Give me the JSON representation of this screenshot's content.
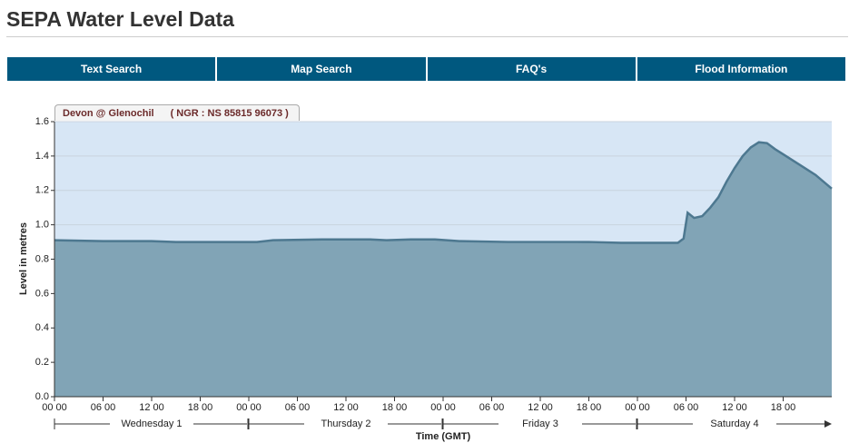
{
  "header": {
    "title": "SEPA Water Level Data"
  },
  "nav": [
    "Text Search",
    "Map Search",
    "FAQ's",
    "Flood Information"
  ],
  "tab": {
    "station": "Devon @ Glenochil",
    "ngr": "( NGR : NS 85815 96073 )"
  },
  "chart_data": {
    "type": "area",
    "x_label": "Time (GMT)",
    "y_label": "Level in metres",
    "x": [
      0,
      6,
      12,
      15,
      24,
      25,
      27,
      33,
      39,
      41,
      44,
      47,
      50,
      56,
      66,
      70,
      77,
      77.7,
      78.2,
      79,
      80,
      81,
      82,
      83,
      84,
      85,
      86,
      87,
      88,
      89,
      90,
      92,
      94,
      96
    ],
    "values": [
      0.91,
      0.905,
      0.905,
      0.9,
      0.9,
      0.9,
      0.91,
      0.915,
      0.915,
      0.91,
      0.915,
      0.915,
      0.905,
      0.9,
      0.9,
      0.895,
      0.895,
      0.92,
      1.07,
      1.04,
      1.05,
      1.1,
      1.16,
      1.25,
      1.33,
      1.4,
      1.45,
      1.48,
      1.475,
      1.44,
      1.41,
      1.35,
      1.29,
      1.21
    ],
    "color": "#81a4b6",
    "line_color": "#4d7890",
    "background": "#d7e6f5",
    "xlim": [
      0,
      96
    ],
    "ylim": [
      0,
      1.6
    ],
    "yticks": [
      {
        "value": 0,
        "label": "0.0"
      },
      0.2,
      0.4,
      0.6,
      0.8,
      {
        "value": 1,
        "label": "1.0"
      },
      1.2,
      1.4,
      1.6
    ],
    "xticks": [
      {
        "value": 0,
        "label": "00 00"
      },
      {
        "value": 6,
        "label": "06 00"
      },
      {
        "value": 12,
        "label": "12 00"
      },
      {
        "value": 18,
        "label": "18 00"
      },
      {
        "value": 24,
        "label": "00 00"
      },
      {
        "value": 30,
        "label": "06 00"
      },
      {
        "value": 36,
        "label": "12 00"
      },
      {
        "value": 42,
        "label": "18 00"
      },
      {
        "value": 48,
        "label": "00 00"
      },
      {
        "value": 54,
        "label": "06 00"
      },
      {
        "value": 60,
        "label": "12 00"
      },
      {
        "value": 66,
        "label": "18 00"
      },
      {
        "value": 72,
        "label": "00 00"
      },
      {
        "value": 78,
        "label": "06 00"
      },
      {
        "value": 84,
        "label": "12 00"
      },
      {
        "value": 90,
        "label": "18 00"
      }
    ],
    "day_labels": [
      "Wednesday 1",
      "Thursday 2",
      "Friday 3",
      "Saturday 4"
    ],
    "grid": true
  }
}
